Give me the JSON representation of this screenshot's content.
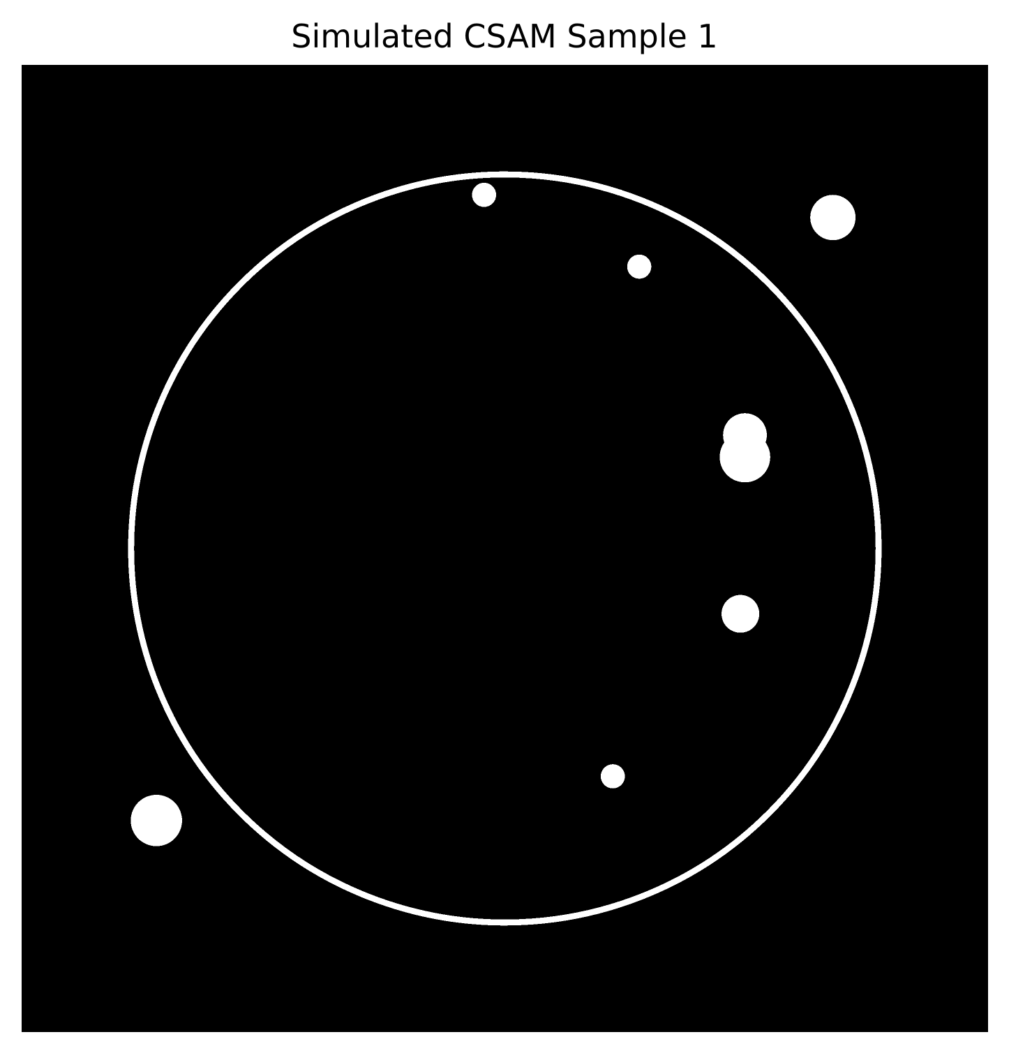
{
  "title": "Simulated CSAM Sample 1",
  "image": {
    "kind": "binary scan image",
    "grid_size": 256,
    "background_color": "#000000",
    "foreground_color": "#ffffff",
    "axes": "off",
    "wafer_outline": {
      "center": [
        128,
        128
      ],
      "radius": 99
    },
    "defects": [
      {
        "center": [
          122.5,
          34.4
        ],
        "radius": 3.2
      },
      {
        "center": [
          163.6,
          53.4
        ],
        "radius": 3.2
      },
      {
        "center": [
          214.9,
          40.4
        ],
        "radius": 6.0
      },
      {
        "center": [
          191.6,
          98.0
        ],
        "radius": 5.8
      },
      {
        "center": [
          191.6,
          103.8
        ],
        "radius": 6.7
      },
      {
        "center": [
          190.4,
          145.3
        ],
        "radius": 5.0
      },
      {
        "center": [
          156.6,
          188.3
        ],
        "radius": 3.2
      },
      {
        "center": [
          35.7,
          200.0
        ],
        "radius": 6.8
      }
    ]
  }
}
